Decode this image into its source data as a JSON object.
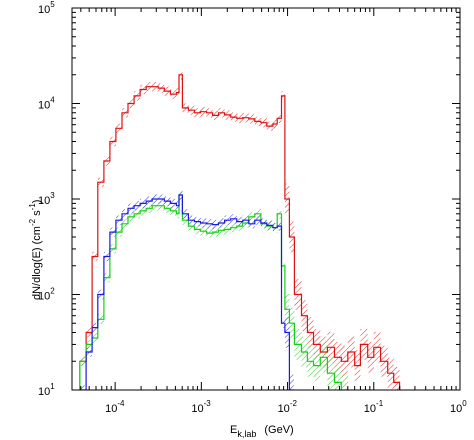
{
  "chart_data": {
    "type": "line",
    "style": "step-histogram with hatched uncertainty bands",
    "xscale": "log",
    "yscale": "log",
    "xlim": [
      3.16e-05,
      1
    ],
    "ylim": [
      10,
      100000
    ],
    "grid": false,
    "legend": "none",
    "xlabel": {
      "base": "E",
      "sub": "k,lab",
      "unit": "(GeV)"
    },
    "ylabel": {
      "main": "dN/dlog(E) (cm",
      "exp1": "-2",
      "mid": " s",
      "exp2": "-1",
      "end": ")"
    },
    "x_ticks": [
      {
        "base": "10",
        "exp": "-4",
        "value": 0.0001
      },
      {
        "base": "10",
        "exp": "-3",
        "value": 0.001
      },
      {
        "base": "10",
        "exp": "-2",
        "value": 0.01
      },
      {
        "base": "10",
        "exp": "-1",
        "value": 0.1
      },
      {
        "base": "10",
        "exp": "0",
        "value": 1
      }
    ],
    "y_ticks": [
      {
        "base": "10",
        "exp": "1",
        "value": 10
      },
      {
        "base": "10",
        "exp": "2",
        "value": 100
      },
      {
        "base": "10",
        "exp": "3",
        "value": 1000
      },
      {
        "base": "10",
        "exp": "4",
        "value": 10000
      },
      {
        "base": "10",
        "exp": "5",
        "value": 100000
      }
    ],
    "series": [
      {
        "color": "#e01010",
        "x": [
          3.9e-05,
          4.6e-05,
          5.4e-05,
          6.3e-05,
          7.4e-05,
          8.7e-05,
          0.000102,
          0.00012,
          0.000141,
          0.000166,
          0.000195,
          0.000229,
          0.000269,
          0.000316,
          0.000372,
          0.000437,
          0.000513,
          0.00055,
          0.000603,
          0.000708,
          0.000832,
          0.000977,
          0.00115,
          0.00135,
          0.00158,
          0.00186,
          0.00219,
          0.00257,
          0.00302,
          0.00355,
          0.00417,
          0.0049,
          0.00575,
          0.00676,
          0.00759,
          0.0085,
          0.0093,
          0.0105,
          0.012,
          0.0145,
          0.017,
          0.02,
          0.024,
          0.029,
          0.035,
          0.042,
          0.05,
          0.06,
          0.07,
          0.085,
          0.1,
          0.12,
          0.145,
          0.17
        ],
        "y": [
          20,
          40,
          250,
          1500,
          2500,
          4000,
          5500,
          8000,
          10000,
          12000,
          14000,
          15000,
          15000,
          14500,
          13500,
          12500,
          13000,
          20000,
          9000,
          8500,
          8000,
          8200,
          8000,
          7500,
          8000,
          7600,
          7200,
          7000,
          7100,
          6900,
          6500,
          6300,
          5800,
          6100,
          7000,
          12000,
          1000,
          400,
          100,
          60,
          40,
          30,
          25,
          28,
          22,
          20,
          25,
          18,
          30,
          22,
          28,
          20,
          15,
          12
        ]
      },
      {
        "color": "#18cc18",
        "x": [
          3.9e-05,
          4.6e-05,
          5.4e-05,
          6.3e-05,
          7.4e-05,
          8.7e-05,
          0.000102,
          0.00012,
          0.000141,
          0.000166,
          0.000195,
          0.000229,
          0.000269,
          0.000316,
          0.000372,
          0.000437,
          0.000513,
          0.00055,
          0.000603,
          0.000708,
          0.000832,
          0.000977,
          0.00115,
          0.00135,
          0.00158,
          0.00186,
          0.00219,
          0.00257,
          0.00302,
          0.00355,
          0.00417,
          0.0049,
          0.00575,
          0.00676,
          0.00759,
          0.0085,
          0.0093,
          0.0105,
          0.012,
          0.0145,
          0.017,
          0.02,
          0.024,
          0.029,
          0.035,
          0.042
        ],
        "y": [
          20,
          30,
          35,
          55,
          150,
          300,
          450,
          550,
          650,
          700,
          750,
          800,
          850,
          850,
          800,
          750,
          700,
          1100,
          600,
          520,
          480,
          460,
          440,
          450,
          470,
          480,
          500,
          520,
          560,
          650,
          700,
          550,
          520,
          500,
          700,
          200,
          70,
          50,
          30,
          25,
          20,
          18,
          22,
          15,
          12,
          10
        ]
      },
      {
        "color": "#1a1ae0",
        "x": [
          3.9e-05,
          4.6e-05,
          5.4e-05,
          6.3e-05,
          7.4e-05,
          8.7e-05,
          0.000102,
          0.00012,
          0.000141,
          0.000166,
          0.000195,
          0.000229,
          0.000269,
          0.000316,
          0.000372,
          0.000437,
          0.000513,
          0.00055,
          0.000603,
          0.000708,
          0.000832,
          0.000977,
          0.00115,
          0.00135,
          0.00158,
          0.00186,
          0.00219,
          0.00257,
          0.00302,
          0.00355,
          0.00417,
          0.0049,
          0.00575,
          0.00676,
          0.00759,
          0.0085,
          0.0093,
          0.0105
        ],
        "y": [
          10,
          25,
          45,
          100,
          250,
          450,
          600,
          700,
          800,
          850,
          900,
          950,
          1000,
          1000,
          950,
          900,
          850,
          1100,
          700,
          600,
          580,
          560,
          550,
          540,
          560,
          600,
          620,
          580,
          600,
          550,
          600,
          560,
          530,
          500,
          520,
          50,
          40,
          10
        ]
      }
    ]
  }
}
